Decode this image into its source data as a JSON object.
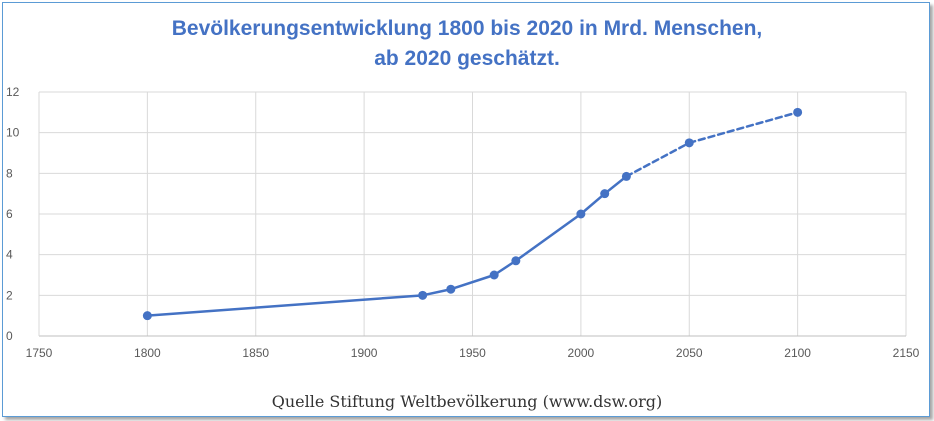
{
  "chart_data": {
    "type": "line",
    "title_line1": "Bevölkerungsentwicklung 1800 bis 2020 in Mrd. Menschen,",
    "title_line2": "ab 2020 geschätzt.",
    "xlim": [
      1750,
      2150
    ],
    "ylim": [
      0,
      12
    ],
    "x_ticks": [
      1750,
      1800,
      1850,
      1900,
      1950,
      2000,
      2050,
      2100,
      2150
    ],
    "y_ticks": [
      0,
      2,
      4,
      6,
      8,
      10,
      12
    ],
    "grid": true,
    "series": [
      {
        "points": [
          {
            "x": 1800,
            "y": 1.0
          },
          {
            "x": 1927,
            "y": 2.0
          },
          {
            "x": 1940,
            "y": 2.3
          },
          {
            "x": 1960,
            "y": 3.0
          },
          {
            "x": 1970,
            "y": 3.7
          },
          {
            "x": 2000,
            "y": 6.0
          },
          {
            "x": 2011,
            "y": 7.0
          },
          {
            "x": 2021,
            "y": 7.85
          },
          {
            "x": 2050,
            "y": 9.5
          },
          {
            "x": 2100,
            "y": 11.0
          }
        ],
        "estimated_from_x": 2021
      }
    ],
    "colors": {
      "line": "#4472c4",
      "grid": "#d9d9d9",
      "title": "#4472c4"
    }
  },
  "caption": "Quelle Stiftung Weltbevölkerung (www.dsw.org)"
}
